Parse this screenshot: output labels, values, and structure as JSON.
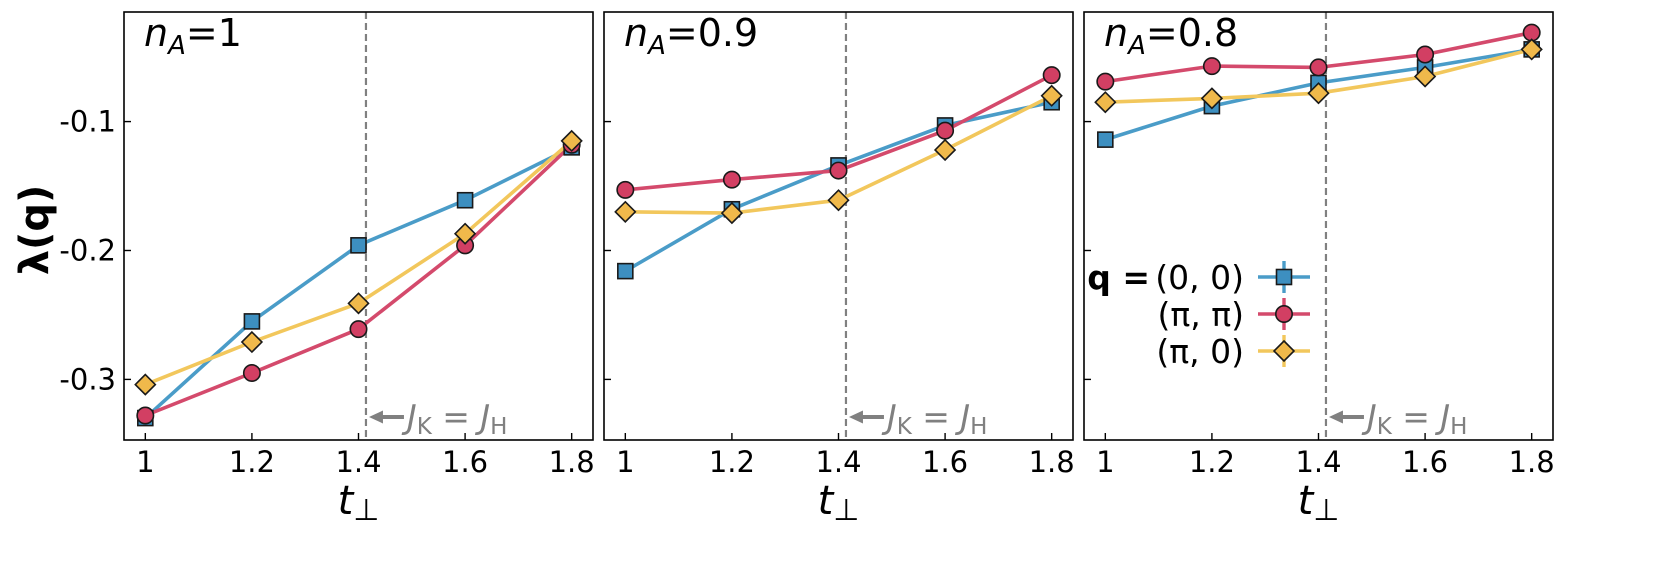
{
  "figure": {
    "ylabel": "λ(q)",
    "xlabel": "t⊥"
  },
  "colors": {
    "q00": "#4a9cc8",
    "qpipi": "#d44a6c",
    "qpi0": "#f2c75c",
    "marker_edge": "#1a1a1a",
    "marker_q00": "#3d8fc0",
    "marker_qpipi": "#d23f63",
    "marker_qpi0": "#f0b94b",
    "annotation": "#808080",
    "vline": "#808080"
  },
  "legend": {
    "prefix": "q =",
    "entries": [
      "(0, 0)",
      "(π, π)",
      "(π, 0)"
    ]
  },
  "annotation_text": "J",
  "annotation_sub1": "K",
  "annotation_sub2": "H",
  "chart_data": [
    {
      "type": "line",
      "title_var": "n",
      "title_sub": "A",
      "title_val": "=1",
      "x": [
        1.0,
        1.2,
        1.4,
        1.6,
        1.8
      ],
      "xlim": [
        0.96,
        1.84
      ],
      "ylim": [
        -0.347,
        -0.015
      ],
      "xticks": [
        "1",
        "1.2",
        "1.4",
        "1.6",
        "1.8"
      ],
      "yticks": [
        -0.1,
        -0.2,
        -0.3
      ],
      "ytick_labels": [
        "-0.1",
        "-0.2",
        "-0.3"
      ],
      "vline_x": 1.414,
      "annotation": "J_K = J_H",
      "series": [
        {
          "name": "(0, 0)",
          "marker": "square",
          "values": [
            -0.33,
            -0.255,
            -0.196,
            -0.161,
            -0.12
          ]
        },
        {
          "name": "(π, π)",
          "marker": "circle",
          "values": [
            -0.328,
            -0.295,
            -0.261,
            -0.196,
            -0.118
          ]
        },
        {
          "name": "(π, 0)",
          "marker": "diamond",
          "values": [
            -0.304,
            -0.271,
            -0.241,
            -0.187,
            -0.115
          ]
        }
      ]
    },
    {
      "type": "line",
      "title_var": "n",
      "title_sub": "A",
      "title_val": "=0.9",
      "x": [
        1.0,
        1.2,
        1.4,
        1.6,
        1.8
      ],
      "xlim": [
        0.96,
        1.84
      ],
      "ylim": [
        -0.347,
        -0.015
      ],
      "xticks": [
        "1",
        "1.2",
        "1.4",
        "1.6",
        "1.8"
      ],
      "vline_x": 1.414,
      "annotation": "J_K = J_H",
      "series": [
        {
          "name": "(0, 0)",
          "marker": "square",
          "values": [
            -0.216,
            -0.168,
            -0.134,
            -0.103,
            -0.085
          ]
        },
        {
          "name": "(π, π)",
          "marker": "circle",
          "values": [
            -0.153,
            -0.145,
            -0.138,
            -0.107,
            -0.064
          ]
        },
        {
          "name": "(π, 0)",
          "marker": "diamond",
          "values": [
            -0.17,
            -0.171,
            -0.161,
            -0.122,
            -0.08
          ]
        }
      ]
    },
    {
      "type": "line",
      "title_var": "n",
      "title_sub": "A",
      "title_val": "=0.8",
      "x": [
        1.0,
        1.2,
        1.4,
        1.6,
        1.8
      ],
      "xlim": [
        0.96,
        1.84
      ],
      "ylim": [
        -0.347,
        -0.015
      ],
      "xticks": [
        "1",
        "1.2",
        "1.4",
        "1.6",
        "1.8"
      ],
      "vline_x": 1.414,
      "annotation": "J_K = J_H",
      "series": [
        {
          "name": "(0, 0)",
          "marker": "square",
          "values": [
            -0.114,
            -0.088,
            -0.07,
            -0.058,
            -0.044
          ]
        },
        {
          "name": "(π, π)",
          "marker": "circle",
          "values": [
            -0.069,
            -0.057,
            -0.058,
            -0.048,
            -0.031
          ]
        },
        {
          "name": "(π, 0)",
          "marker": "diamond",
          "values": [
            -0.085,
            -0.082,
            -0.078,
            -0.065,
            -0.044
          ]
        }
      ]
    }
  ]
}
